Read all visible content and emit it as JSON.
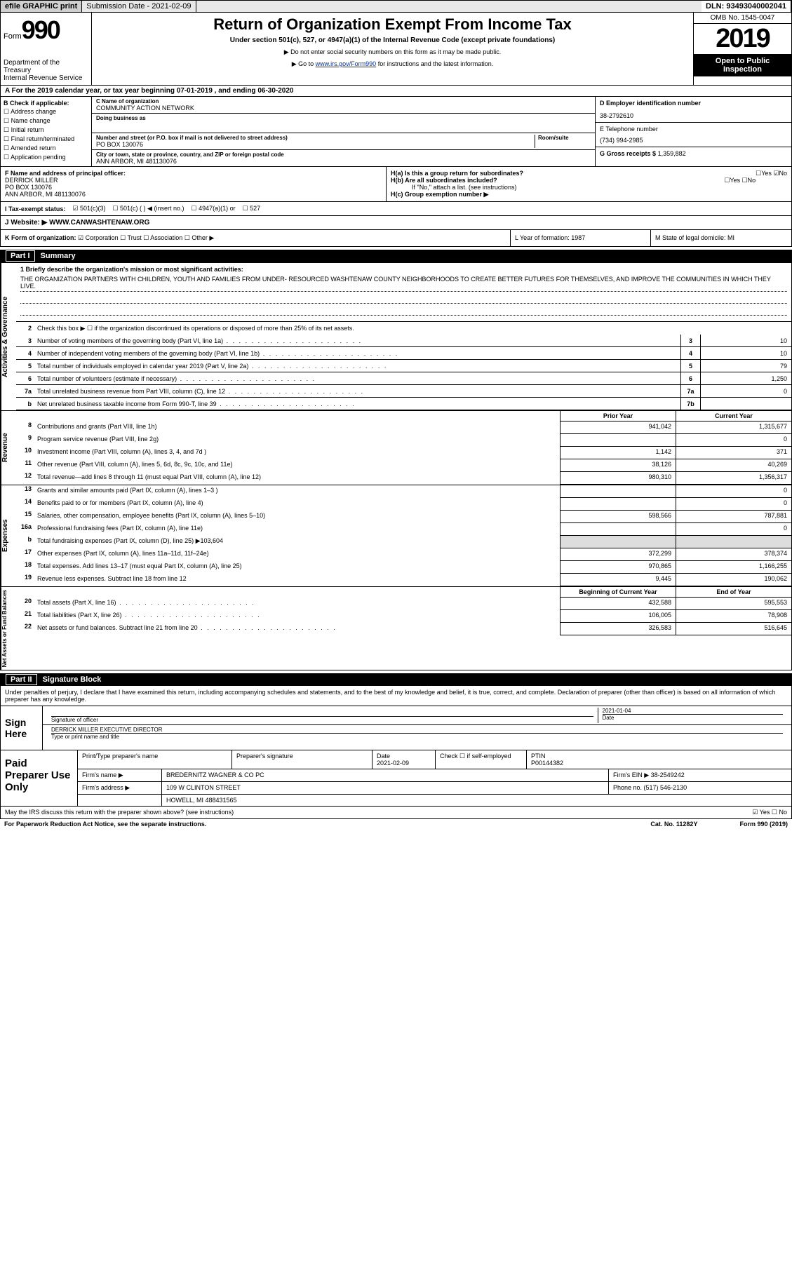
{
  "top": {
    "efile": "efile GRAPHIC print",
    "sub_label": "Submission Date - 2021-02-09",
    "dln": "DLN: 93493040002041"
  },
  "header": {
    "form_word": "Form",
    "form_num": "990",
    "title": "Return of Organization Exempt From Income Tax",
    "subtitle": "Under section 501(c), 527, or 4947(a)(1) of the Internal Revenue Code (except private foundations)",
    "arrow1": "▶ Do not enter social security numbers on this form as it may be made public.",
    "arrow2_pre": "▶ Go to ",
    "arrow2_link": "www.irs.gov/Form990",
    "arrow2_post": " for instructions and the latest information.",
    "dept": "Department of the Treasury\nInternal Revenue Service",
    "omb": "OMB No. 1545-0047",
    "year": "2019",
    "inspect": "Open to Public Inspection"
  },
  "line_a": "A For the 2019 calendar year, or tax year beginning 07-01-2019    , and ending 06-30-2020",
  "col_b": {
    "title": "B Check if applicable:",
    "opts": [
      "Address change",
      "Name change",
      "Initial return",
      "Final return/terminated",
      "Amended return",
      "Application pending"
    ]
  },
  "col_c": {
    "name_label": "C Name of organization",
    "name": "COMMUNITY ACTION NETWORK",
    "dba_label": "Doing business as",
    "dba": "",
    "addr_label": "Number and street (or P.O. box if mail is not delivered to street address)",
    "room_label": "Room/suite",
    "addr": "PO BOX 130076",
    "city_label": "City or town, state or province, country, and ZIP or foreign postal code",
    "city": "ANN ARBOR, MI  481130076"
  },
  "col_d": {
    "ein_label": "D Employer identification number",
    "ein": "38-2792610",
    "phone_label": "E Telephone number",
    "phone": "(734) 994-2985",
    "gross_label": "G Gross receipts $",
    "gross": "1,359,882"
  },
  "fg": {
    "f_label": "F Name and address of principal officer:",
    "f_val": "DERRICK MILLER\nPO BOX 130076\nANN ARBOR, MI  481130076",
    "ha": "H(a)  Is this a group return for subordinates?",
    "hb": "H(b)  Are all subordinates included?",
    "hb_note": "If \"No,\" attach a list. (see instructions)",
    "hc": "H(c)  Group exemption number ▶"
  },
  "status": {
    "label": "I  Tax-exempt status:",
    "opt1": "501(c)(3)",
    "opt2": "501(c) (   ) ◀ (insert no.)",
    "opt3": "4947(a)(1) or",
    "opt4": "527"
  },
  "website": {
    "label": "J  Website: ▶",
    "val": "WWW.CANWASHTENAW.ORG"
  },
  "k": {
    "label": "K Form of organization:",
    "opts": [
      "Corporation",
      "Trust",
      "Association",
      "Other ▶"
    ],
    "l": "L Year of formation: 1987",
    "m": "M State of legal domicile: MI"
  },
  "part1": {
    "label": "Part I",
    "title": "Summary"
  },
  "mission": {
    "label": "1  Briefly describe the organization's mission or most significant activities:",
    "text": "THE ORGANIZATION PARTNERS WITH CHILDREN, YOUTH AND FAMILIES FROM UNDER- RESOURCED WASHTENAW COUNTY NEIGHBORHOODS TO CREATE BETTER FUTURES FOR THEMSELVES, AND IMPROVE THE COMMUNITIES IN WHICH THEY LIVE."
  },
  "gov": {
    "section_label": "Activities & Governance",
    "l2": "Check this box ▶ ☐  if the organization discontinued its operations or disposed of more than 25% of its net assets.",
    "lines": [
      {
        "n": "3",
        "d": "Number of voting members of the governing body (Part VI, line 1a)",
        "box": "3",
        "v": "10"
      },
      {
        "n": "4",
        "d": "Number of independent voting members of the governing body (Part VI, line 1b)",
        "box": "4",
        "v": "10"
      },
      {
        "n": "5",
        "d": "Total number of individuals employed in calendar year 2019 (Part V, line 2a)",
        "box": "5",
        "v": "79"
      },
      {
        "n": "6",
        "d": "Total number of volunteers (estimate if necessary)",
        "box": "6",
        "v": "1,250"
      },
      {
        "n": "7a",
        "d": "Total unrelated business revenue from Part VIII, column (C), line 12",
        "box": "7a",
        "v": "0"
      },
      {
        "n": "b",
        "d": "Net unrelated business taxable income from Form 990-T, line 39",
        "box": "7b",
        "v": ""
      }
    ]
  },
  "rev": {
    "section_label": "Revenue",
    "h_prior": "Prior Year",
    "h_current": "Current Year",
    "lines": [
      {
        "n": "8",
        "d": "Contributions and grants (Part VIII, line 1h)",
        "a": "941,042",
        "b": "1,315,677"
      },
      {
        "n": "9",
        "d": "Program service revenue (Part VIII, line 2g)",
        "a": "",
        "b": "0"
      },
      {
        "n": "10",
        "d": "Investment income (Part VIII, column (A), lines 3, 4, and 7d )",
        "a": "1,142",
        "b": "371"
      },
      {
        "n": "11",
        "d": "Other revenue (Part VIII, column (A), lines 5, 6d, 8c, 9c, 10c, and 11e)",
        "a": "38,126",
        "b": "40,269"
      },
      {
        "n": "12",
        "d": "Total revenue—add lines 8 through 11 (must equal Part VIII, column (A), line 12)",
        "a": "980,310",
        "b": "1,356,317"
      }
    ]
  },
  "exp": {
    "section_label": "Expenses",
    "lines": [
      {
        "n": "13",
        "d": "Grants and similar amounts paid (Part IX, column (A), lines 1–3 )",
        "a": "",
        "b": "0"
      },
      {
        "n": "14",
        "d": "Benefits paid to or for members (Part IX, column (A), line 4)",
        "a": "",
        "b": "0"
      },
      {
        "n": "15",
        "d": "Salaries, other compensation, employee benefits (Part IX, column (A), lines 5–10)",
        "a": "598,566",
        "b": "787,881"
      },
      {
        "n": "16a",
        "d": "Professional fundraising fees (Part IX, column (A), line 11e)",
        "a": "",
        "b": "0"
      },
      {
        "n": "b",
        "d": "Total fundraising expenses (Part IX, column (D), line 25) ▶103,604",
        "a": "SHADE",
        "b": "SHADE"
      },
      {
        "n": "17",
        "d": "Other expenses (Part IX, column (A), lines 11a–11d, 11f–24e)",
        "a": "372,299",
        "b": "378,374"
      },
      {
        "n": "18",
        "d": "Total expenses. Add lines 13–17 (must equal Part IX, column (A), line 25)",
        "a": "970,865",
        "b": "1,166,255"
      },
      {
        "n": "19",
        "d": "Revenue less expenses. Subtract line 18 from line 12",
        "a": "9,445",
        "b": "190,062"
      }
    ]
  },
  "net": {
    "section_label": "Net Assets or Fund Balances",
    "h_begin": "Beginning of Current Year",
    "h_end": "End of Year",
    "lines": [
      {
        "n": "20",
        "d": "Total assets (Part X, line 16)",
        "a": "432,588",
        "b": "595,553"
      },
      {
        "n": "21",
        "d": "Total liabilities (Part X, line 26)",
        "a": "106,005",
        "b": "78,908"
      },
      {
        "n": "22",
        "d": "Net assets or fund balances. Subtract line 21 from line 20",
        "a": "326,583",
        "b": "516,645"
      }
    ]
  },
  "part2": {
    "label": "Part II",
    "title": "Signature Block"
  },
  "sig": {
    "decl": "Under penalties of perjury, I declare that I have examined this return, including accompanying schedules and statements, and to the best of my knowledge and belief, it is true, correct, and complete. Declaration of preparer (other than officer) is based on all information of which preparer has any knowledge.",
    "sign_here": "Sign Here",
    "sig_officer": "Signature of officer",
    "date_label": "Date",
    "date": "2021-01-04",
    "name": "DERRICK MILLER  EXECUTIVE DIRECTOR",
    "name_label": "Type or print name and title"
  },
  "prep": {
    "label": "Paid Preparer Use Only",
    "r1": {
      "c1": "Print/Type preparer's name",
      "c2": "Preparer's signature",
      "c3_l": "Date",
      "c3": "2021-02-09",
      "c4": "Check ☐  if self-employed",
      "c5_l": "PTIN",
      "c5": "P00144382"
    },
    "r2": {
      "c1": "Firm's name      ▶",
      "c2": "BREDERNITZ WAGNER & CO PC",
      "c3": "Firm's EIN ▶",
      "c4": "38-2549242"
    },
    "r3": {
      "c1": "Firm's address ▶",
      "c2": "109 W CLINTON STREET",
      "c3": "Phone no. (517) 546-2130"
    },
    "r3b": "HOWELL, MI  488431565"
  },
  "footer": {
    "discuss": "May the IRS discuss this return with the preparer shown above? (see instructions)",
    "paperwork": "For Paperwork Reduction Act Notice, see the separate instructions.",
    "cat": "Cat. No. 11282Y",
    "form": "Form 990 (2019)"
  }
}
